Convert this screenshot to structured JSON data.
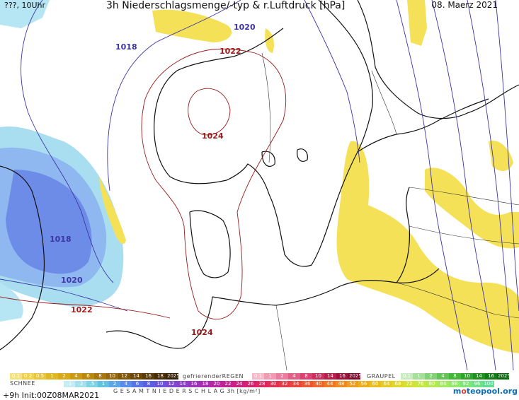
{
  "header": {
    "left": "???, 10Uhr",
    "title": "3h Niederschlagsmenge/-typ & r.Luftdruck [hPa]",
    "date": "08. Maerz 2021"
  },
  "isobars": [
    {
      "label": "1018",
      "color": "#3b35a8"
    },
    {
      "label": "1020",
      "color": "#3b35a8"
    },
    {
      "label": "1022",
      "color": "#9a1b1b"
    },
    {
      "label": "1024",
      "color": "#9a1b1b"
    },
    {
      "label": "1018",
      "color": "#3b35a8"
    },
    {
      "label": "1020",
      "color": "#3b35a8"
    },
    {
      "label": "1022",
      "color": "#9a1b1b"
    },
    {
      "label": "1024",
      "color": "#9a1b1b"
    }
  ],
  "legend": {
    "rain_values": [
      "0.1",
      "0.2",
      "0.5",
      "1",
      "2",
      "4",
      "6",
      "8",
      "10",
      "12",
      "14",
      "16",
      "18",
      "2025+"
    ],
    "freezing_rain_label": "gefrierenderREGEN",
    "freezing_values": [
      "0.1",
      "1",
      "2",
      "4",
      "8",
      "10",
      "14",
      "16",
      "2025+"
    ],
    "graupel_label": "GRAUPEL",
    "graupel_values": [
      "0.1",
      "1",
      "2",
      "4",
      "8",
      "10",
      "14",
      "16",
      "2025+"
    ],
    "snow_label": "SCHNEE",
    "snow_values": [
      ".1",
      ".2",
      ".5",
      "1",
      "2",
      "4",
      "6",
      "8",
      "10",
      "12",
      "14",
      "16",
      "18",
      "20",
      "22",
      "24",
      "26",
      "28",
      "30",
      "32",
      "34",
      "36",
      "40",
      "44",
      "48",
      "52",
      "56",
      "60",
      "64",
      "68",
      "72",
      "76",
      "80",
      "84",
      "88",
      "92",
      "96",
      "100"
    ],
    "total_label": "G E S A M T N I E D E R S C H L A G   3h   [kg/m²]",
    "run_info": "+9h  Init:00Z08MAR2021",
    "logo_prefix": "m",
    "logo_o": "o",
    "logo_rest": "teopool.org"
  },
  "colors": {
    "rain_palette": [
      "#f6e27a",
      "#f0d24a",
      "#e8c53a",
      "#dfb826",
      "#d6aa1a",
      "#c99a12",
      "#b98a10",
      "#a8780f",
      "#95680d",
      "#80570b",
      "#6d4809",
      "#5a3a07",
      "#472c05",
      "#331f03"
    ],
    "freezing_palette": [
      "#f7b8c8",
      "#f29ab3",
      "#ec7c9e",
      "#e45f88",
      "#d94373",
      "#c9305f",
      "#b4214d",
      "#9c143d",
      "#800a2f"
    ],
    "graupel_palette": [
      "#c8ecc0",
      "#a6df9a",
      "#84d277",
      "#62c455",
      "#44b63a",
      "#2ea42a",
      "#1f901f",
      "#147c16",
      "#0a680e"
    ],
    "snow_palette": [
      "#c7ecf3",
      "#a4e0ec",
      "#7fd3e4",
      "#63c2e0",
      "#5aa6e6",
      "#5a8de9",
      "#5875e8",
      "#5a60e4",
      "#6a55dc",
      "#7a4ad2",
      "#8a40c8",
      "#9a36bc",
      "#aa2cb0",
      "#b826a0",
      "#c42290",
      "#cf2080",
      "#d82070",
      "#e02560",
      "#e52d52",
      "#e93846",
      "#ec453a",
      "#ee5530",
      "#ef6628",
      "#f07822",
      "#f08a1e",
      "#f09c1c",
      "#eeae1c",
      "#ebbe1e",
      "#e6cc22",
      "#dfd82a",
      "#d4e034",
      "#c6e640",
      "#b6e94e",
      "#a4ea5c",
      "#92e96a",
      "#80e678",
      "#6ee286",
      "#5edd94"
    ]
  }
}
